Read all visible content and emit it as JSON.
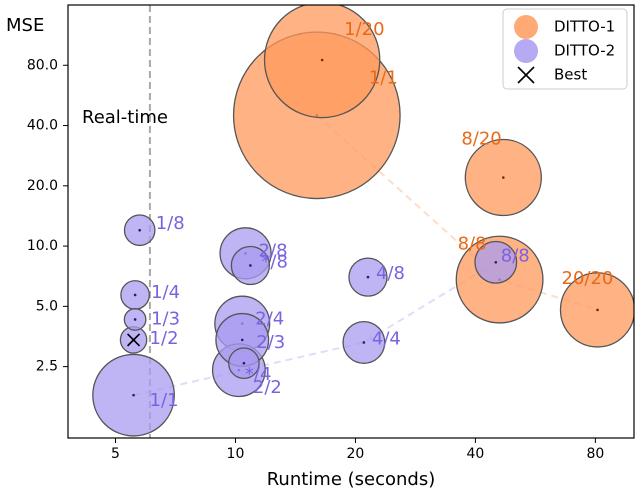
{
  "chart_data": {
    "type": "scatter",
    "title": "",
    "xlabel": "Runtime (seconds)",
    "ylabel": "MSE",
    "x_scale": "log",
    "y_scale": "log",
    "x_ticks": [
      5,
      10,
      20,
      40,
      80
    ],
    "x_tick_labels": [
      "5",
      "10",
      "20",
      "40",
      "80"
    ],
    "y_ticks": [
      2.5,
      5.0,
      10.0,
      20.0,
      40.0,
      80.0
    ],
    "y_tick_labels": [
      "2.5",
      "5.0",
      "10.0",
      "20.0",
      "40.0",
      "80.0"
    ],
    "xlim": [
      3.8,
      100
    ],
    "ylim": [
      1.1,
      160
    ],
    "grid": false,
    "legend_position": "top-right",
    "reference_line": {
      "x": 6.1,
      "label": "Real-time",
      "color": "#aaaaaa",
      "style": "dashed"
    },
    "best": {
      "label": "Best",
      "x": 5.55,
      "y": 3.4
    },
    "series": [
      {
        "name": "DITTO-1",
        "color": "#ff9a5c",
        "label_color": "#e86a17",
        "points": [
          {
            "label": "1/20",
            "x": 16.5,
            "y": 85,
            "size": 2.3
          },
          {
            "label": "1/1",
            "x": 16.0,
            "y": 45,
            "size": 4.8
          },
          {
            "label": "8/20",
            "x": 47,
            "y": 22,
            "size": 1.0
          },
          {
            "label": "8/8",
            "x": 46,
            "y": 6.8,
            "size": 1.3
          },
          {
            "label": "20/20",
            "x": 81,
            "y": 4.8,
            "size": 0.95
          }
        ],
        "trend_path": [
          "1/1",
          "8/8",
          "20/20"
        ]
      },
      {
        "name": "DITTO-2",
        "color": "#a99bf0",
        "label_color": "#7a63e0",
        "points": [
          {
            "label": "1/1",
            "x": 5.55,
            "y": 1.8,
            "size": 1.15
          },
          {
            "label": "1/2",
            "x": 5.55,
            "y": 3.4,
            "size": 0.12
          },
          {
            "label": "1/3",
            "x": 5.6,
            "y": 4.3,
            "size": 0.08
          },
          {
            "label": "1/4",
            "x": 5.6,
            "y": 5.7,
            "size": 0.14
          },
          {
            "label": "1/8",
            "x": 5.75,
            "y": 12,
            "size": 0.16
          },
          {
            "label": "2/2",
            "x": 10.2,
            "y": 2.4,
            "size": 0.48
          },
          {
            "label": "*/4",
            "x": 10.5,
            "y": 2.6,
            "size": 0.16
          },
          {
            "label": "2/3",
            "x": 10.4,
            "y": 3.4,
            "size": 0.48
          },
          {
            "label": "2/4",
            "x": 10.4,
            "y": 4.1,
            "size": 0.52
          },
          {
            "label": "2/8",
            "x": 10.6,
            "y": 9.2,
            "size": 0.45
          },
          {
            "label": "*/8",
            "x": 10.9,
            "y": 8.0,
            "size": 0.25
          },
          {
            "label": "4/4",
            "x": 21.0,
            "y": 3.3,
            "size": 0.3
          },
          {
            "label": "4/8",
            "x": 21.5,
            "y": 7.0,
            "size": 0.25
          },
          {
            "label": "8/8",
            "x": 45,
            "y": 8.3,
            "size": 0.3
          }
        ],
        "trend_path": [
          "1/1",
          "4/4",
          "8/8"
        ]
      }
    ]
  }
}
